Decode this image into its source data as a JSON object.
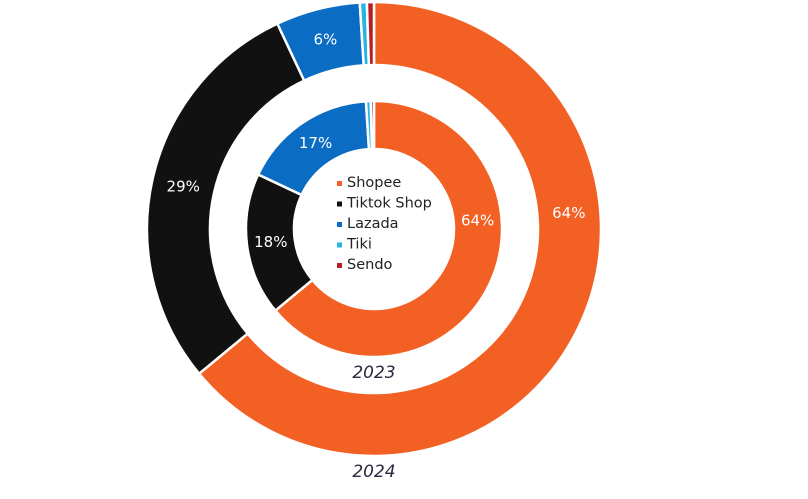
{
  "chart_data": {
    "type": "pie",
    "subtype": "nested-donut",
    "title": "",
    "categories": [
      "Shopee",
      "Tiktok Shop",
      "Lazada",
      "Tiki",
      "Sendo"
    ],
    "colors": [
      "#F26024",
      "#111111",
      "#0B6CC3",
      "#27B4E0",
      "#B81D24"
    ],
    "series": [
      {
        "name": "2023",
        "ring": "inner",
        "values": [
          64,
          18,
          17,
          0.6,
          0.4
        ],
        "labels": [
          "64%",
          "18%",
          "17%",
          "",
          ""
        ]
      },
      {
        "name": "2024",
        "ring": "outer",
        "values": [
          64,
          29,
          6,
          0.5,
          0.5
        ],
        "labels": [
          "64%",
          "29%",
          "6%",
          "",
          ""
        ]
      }
    ],
    "legend": {
      "placement": "center",
      "entries": [
        "Shopee",
        "Tiktok Shop",
        "Lazada",
        "Tiki",
        "Sendo"
      ]
    }
  }
}
